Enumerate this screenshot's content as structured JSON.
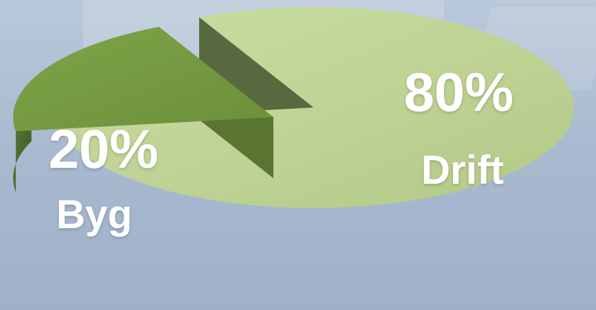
{
  "chart_data": {
    "type": "pie",
    "title": "",
    "slices": [
      {
        "label": "Drift",
        "value": 80,
        "value_label": "80%",
        "color": "#bfd18f",
        "side_color": "#6f8250"
      },
      {
        "label": "Byg",
        "value": 20,
        "value_label": "20%",
        "color": "#789a43",
        "side_color": "#556f33"
      }
    ]
  }
}
